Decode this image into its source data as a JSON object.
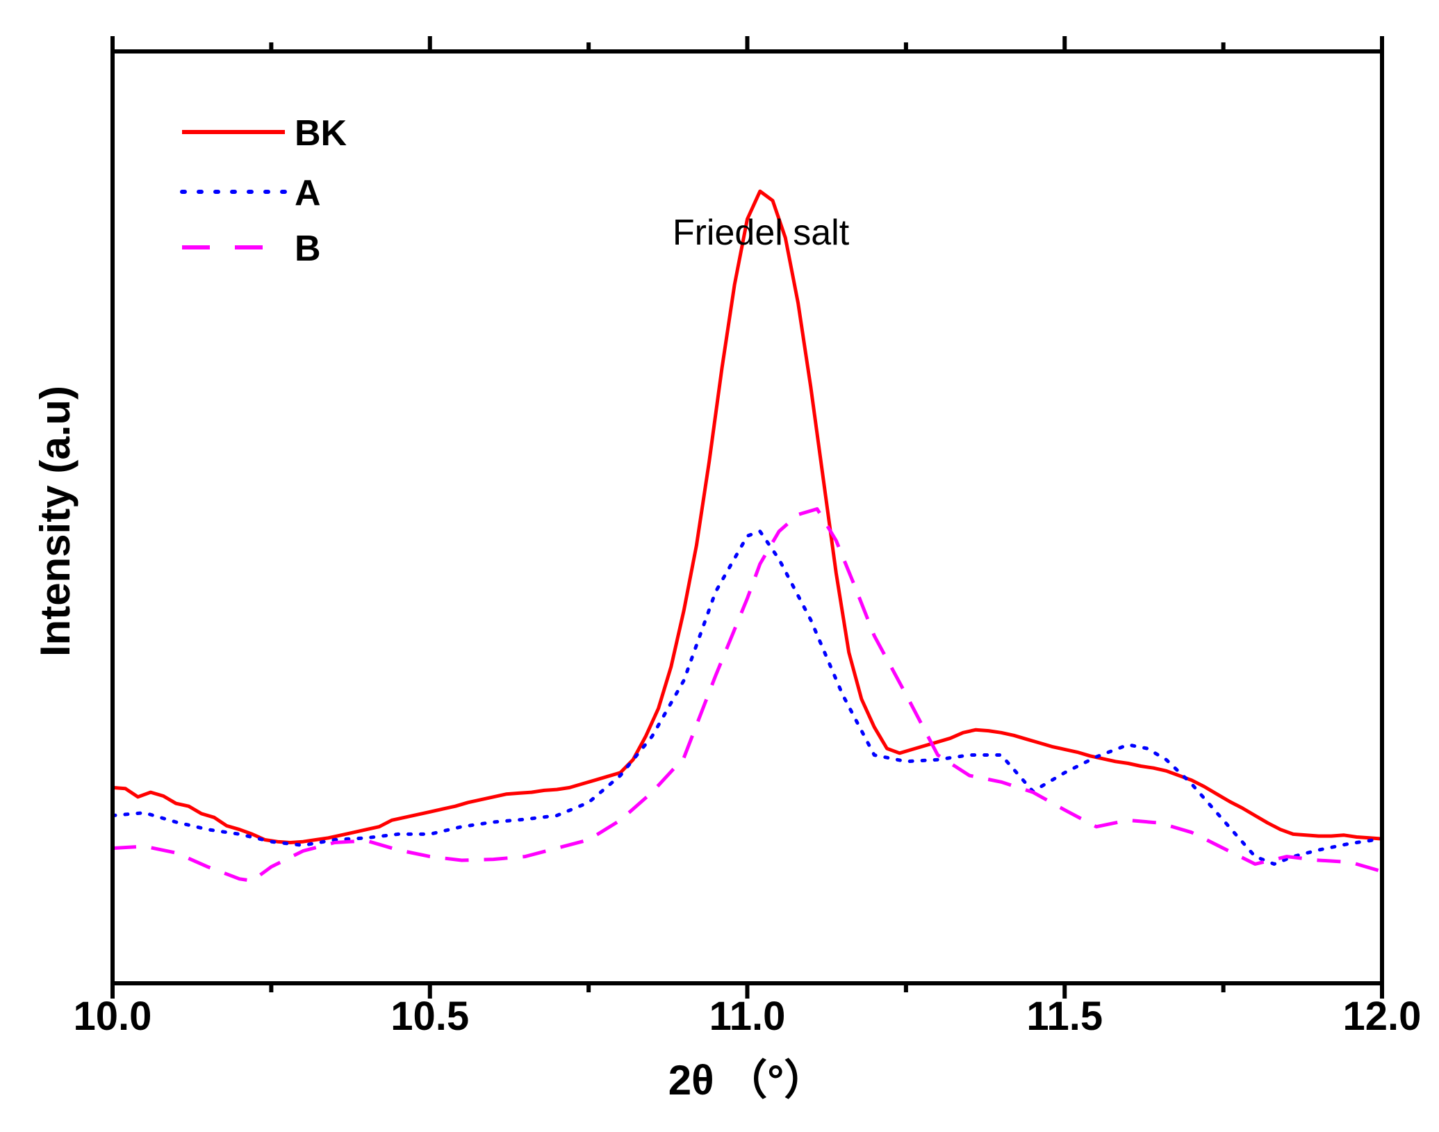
{
  "chart_data": {
    "type": "line",
    "title": "",
    "xlabel": "2θ （°）",
    "ylabel": "Intensity (a.u)",
    "xlim": [
      10.0,
      12.0
    ],
    "ylim": [
      0,
      100
    ],
    "x_major_ticks": [
      10.0,
      10.5,
      11.0,
      11.5,
      12.0
    ],
    "x_tick_labels": [
      "10.0",
      "10.5",
      "11.0",
      "11.5",
      "12.0"
    ],
    "x_minor_ticks": [
      10.25,
      10.75,
      11.25,
      11.75
    ],
    "y_ticks_shown": false,
    "grid": false,
    "legend_position": "top-left",
    "annotation": {
      "text": "Friedel salt",
      "x": 11.03,
      "y": 79
    },
    "series": [
      {
        "name": "BK",
        "color": "#ff0000",
        "style": "solid",
        "x": [
          10.0,
          10.02,
          10.04,
          10.06,
          10.08,
          10.1,
          10.12,
          10.14,
          10.16,
          10.18,
          10.2,
          10.22,
          10.24,
          10.26,
          10.28,
          10.3,
          10.32,
          10.34,
          10.36,
          10.38,
          10.4,
          10.42,
          10.44,
          10.46,
          10.48,
          10.5,
          10.52,
          10.54,
          10.56,
          10.58,
          10.6,
          10.62,
          10.64,
          10.66,
          10.68,
          10.7,
          10.72,
          10.74,
          10.76,
          10.78,
          10.8,
          10.82,
          10.84,
          10.86,
          10.88,
          10.9,
          10.92,
          10.94,
          10.96,
          10.98,
          11.0,
          11.02,
          11.04,
          11.06,
          11.08,
          11.1,
          11.12,
          11.14,
          11.16,
          11.18,
          11.2,
          11.22,
          11.24,
          11.26,
          11.28,
          11.3,
          11.32,
          11.34,
          11.36,
          11.38,
          11.4,
          11.42,
          11.44,
          11.46,
          11.48,
          11.5,
          11.52,
          11.54,
          11.56,
          11.58,
          11.6,
          11.62,
          11.64,
          11.66,
          11.68,
          11.7,
          11.72,
          11.74,
          11.76,
          11.78,
          11.8,
          11.82,
          11.84,
          11.86,
          11.88,
          11.9,
          11.92,
          11.94,
          11.96,
          11.98,
          12.0
        ],
        "values": [
          21,
          20.9,
          20,
          20.5,
          20.1,
          19.3,
          19,
          18.2,
          17.8,
          16.9,
          16.5,
          16,
          15.4,
          15.2,
          15.1,
          15.2,
          15.4,
          15.6,
          15.9,
          16.2,
          16.5,
          16.8,
          17.5,
          17.8,
          18.1,
          18.4,
          18.7,
          19,
          19.4,
          19.7,
          20,
          20.3,
          20.4,
          20.5,
          20.7,
          20.8,
          21,
          21.4,
          21.8,
          22.2,
          22.6,
          24,
          26.5,
          29.5,
          34,
          40,
          47,
          56,
          66,
          75,
          82,
          85,
          84,
          80,
          73,
          64,
          54,
          44,
          35.5,
          30.5,
          27.5,
          25.2,
          24.7,
          25.1,
          25.5,
          25.9,
          26.3,
          26.9,
          27.2,
          27.1,
          26.9,
          26.6,
          26.2,
          25.8,
          25.4,
          25.1,
          24.8,
          24.4,
          24.1,
          23.8,
          23.6,
          23.3,
          23.1,
          22.8,
          22.3,
          21.8,
          21.1,
          20.3,
          19.5,
          18.8,
          18,
          17.2,
          16.5,
          16,
          15.9,
          15.8,
          15.8,
          15.9,
          15.7,
          15.6,
          15.5
        ]
      },
      {
        "name": "A",
        "color": "#0000ff",
        "style": "dotted",
        "x": [
          10.0,
          10.05,
          10.1,
          10.15,
          10.2,
          10.25,
          10.3,
          10.35,
          10.4,
          10.45,
          10.5,
          10.55,
          10.6,
          10.65,
          10.7,
          10.75,
          10.8,
          10.85,
          10.9,
          10.95,
          11.0,
          11.02,
          11.05,
          11.1,
          11.15,
          11.2,
          11.25,
          11.3,
          11.35,
          11.4,
          11.45,
          11.5,
          11.55,
          11.6,
          11.63,
          11.66,
          11.7,
          11.75,
          11.8,
          11.83,
          11.86,
          11.9,
          11.95,
          12.0
        ],
        "values": [
          18,
          18.3,
          17.3,
          16.5,
          16,
          15.2,
          14.8,
          15.4,
          15.6,
          16,
          16,
          16.8,
          17.3,
          17.6,
          18,
          19.4,
          22.3,
          26.5,
          32.5,
          42,
          48,
          48.5,
          45.5,
          39,
          31,
          24.5,
          23.8,
          24,
          24.5,
          24.5,
          20.6,
          22.6,
          24.3,
          25.6,
          25.2,
          24,
          21.4,
          17.5,
          13.6,
          12.8,
          13.6,
          14.3,
          15,
          15.5
        ]
      },
      {
        "name": "B",
        "color": "#ff00ff",
        "style": "dashed",
        "x": [
          10.0,
          10.05,
          10.1,
          10.15,
          10.2,
          10.22,
          10.25,
          10.3,
          10.35,
          10.4,
          10.45,
          10.5,
          10.55,
          10.6,
          10.65,
          10.7,
          10.75,
          10.8,
          10.85,
          10.9,
          10.95,
          11.0,
          11.02,
          11.05,
          11.08,
          11.11,
          11.14,
          11.17,
          11.2,
          11.25,
          11.3,
          11.35,
          11.4,
          11.45,
          11.5,
          11.55,
          11.6,
          11.65,
          11.7,
          11.75,
          11.8,
          11.85,
          11.9,
          11.95,
          12.0
        ],
        "values": [
          14.5,
          14.7,
          14,
          12.5,
          11.2,
          11,
          12.5,
          14.2,
          15.1,
          15.3,
          14.3,
          13.6,
          13.2,
          13.3,
          13.6,
          14.5,
          15.4,
          17.5,
          20.5,
          24.2,
          33,
          41.3,
          45,
          48.5,
          50.3,
          50.9,
          47.5,
          42.5,
          37.3,
          31,
          24.5,
          22.3,
          21.6,
          20.5,
          18.6,
          16.8,
          17.5,
          17.2,
          16.2,
          14.5,
          12.8,
          13.6,
          13.2,
          13,
          12
        ]
      }
    ]
  }
}
